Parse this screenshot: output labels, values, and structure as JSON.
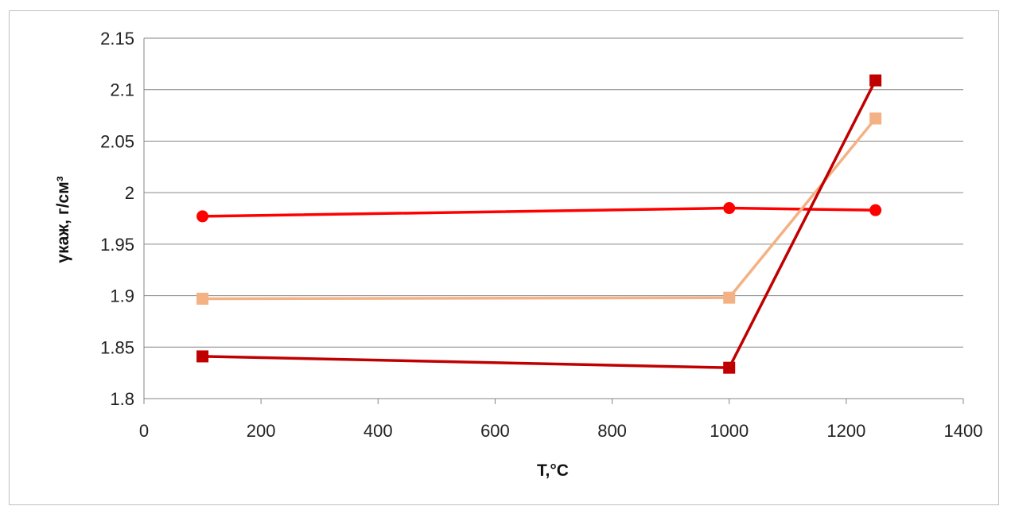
{
  "chart_data": {
    "type": "line",
    "title": "",
    "xlabel": "T,°C",
    "ylabel": "γкаж, г/см³",
    "xlim": [
      0,
      1400
    ],
    "ylim": [
      1.8,
      2.15
    ],
    "x_ticks": [
      0,
      200,
      400,
      600,
      800,
      1000,
      1200,
      1400
    ],
    "y_ticks": [
      1.8,
      1.85,
      1.9,
      1.95,
      2,
      2.05,
      2.1,
      2.15
    ],
    "x_tick_labels": [
      "0",
      "200",
      "400",
      "600",
      "800",
      "1000",
      "1200",
      "1400"
    ],
    "y_tick_labels": [
      "1.8",
      "1.85",
      "1.9",
      "1.95",
      "2",
      "2.05",
      "2.1",
      "2.15"
    ],
    "grid": "horizontal",
    "legend": "none",
    "series": [
      {
        "x": [
          100,
          1000,
          1250
        ],
        "y": [
          1.977,
          1.985,
          1.983
        ],
        "color": "#ff0000",
        "marker": "circle"
      },
      {
        "x": [
          100,
          1000,
          1250
        ],
        "y": [
          1.897,
          1.898,
          2.072
        ],
        "color": "#f4b183",
        "marker": "square"
      },
      {
        "x": [
          100,
          1000,
          1250
        ],
        "y": [
          1.841,
          1.83,
          2.109
        ],
        "color": "#c00000",
        "marker": "square"
      }
    ]
  }
}
